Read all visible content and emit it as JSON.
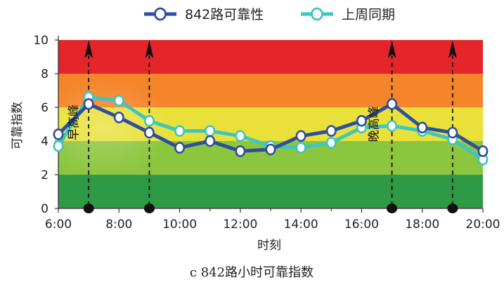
{
  "chart_data": {
    "type": "line",
    "caption": "c 842路小时可靠指数",
    "xlabel": "时刻",
    "ylabel": "可靠指数",
    "x_tick_labels": [
      "6:00",
      "8:00",
      "10:00",
      "12:00",
      "14:00",
      "16:00",
      "18:00",
      "20:00"
    ],
    "y_tick_labels": [
      "0",
      "2",
      "4",
      "6",
      "8",
      "10"
    ],
    "xlim": [
      6,
      20
    ],
    "ylim": [
      0,
      10
    ],
    "x": [
      6,
      7,
      8,
      9,
      10,
      11,
      12,
      13,
      14,
      15,
      16,
      17,
      18,
      19,
      20
    ],
    "series": [
      {
        "name": "842路可靠性",
        "color": "#2e4f9e",
        "values": [
          4.4,
          6.2,
          5.4,
          4.5,
          3.6,
          4.0,
          3.4,
          3.5,
          4.3,
          4.6,
          5.2,
          6.2,
          4.8,
          4.5,
          3.4
        ]
      },
      {
        "name": "上周同期",
        "color": "#3ec6c1",
        "values": [
          3.7,
          6.6,
          6.4,
          5.2,
          4.6,
          4.6,
          4.3,
          3.7,
          3.6,
          3.9,
          4.8,
          4.9,
          4.6,
          4.1,
          2.9
        ]
      }
    ],
    "bands": [
      {
        "from": 0,
        "to": 2,
        "color": "#2f9a45"
      },
      {
        "from": 2,
        "to": 4,
        "color": "#8cc63f"
      },
      {
        "from": 4,
        "to": 6,
        "color": "#e9e13a"
      },
      {
        "from": 6,
        "to": 8,
        "color": "#f5852a"
      },
      {
        "from": 8,
        "to": 10,
        "color": "#e4262a"
      }
    ],
    "peak_markers": [
      7,
      9,
      17,
      19
    ],
    "annotations": [
      {
        "text": "早高峰",
        "x": 6.5,
        "y": 4.4
      },
      {
        "text": "晚高峰",
        "x": 16.4,
        "y": 4.3
      }
    ],
    "legend_position": "top-center",
    "grid": false
  }
}
